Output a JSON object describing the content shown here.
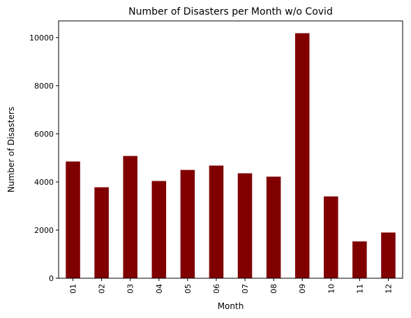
{
  "chart_data": {
    "type": "bar",
    "title": "Number of Disasters per Month w/o Covid",
    "xlabel": "Month",
    "ylabel": "Number of Disasters",
    "categories": [
      "01",
      "02",
      "03",
      "04",
      "05",
      "06",
      "07",
      "08",
      "09",
      "10",
      "11",
      "12"
    ],
    "values": [
      4850,
      3780,
      5080,
      4040,
      4500,
      4680,
      4360,
      4220,
      10180,
      3400,
      1530,
      1900
    ],
    "ylim": [
      0,
      10690
    ],
    "yticks": [
      0,
      2000,
      4000,
      6000,
      8000,
      10000
    ],
    "bar_color": "#800000",
    "grid": false,
    "legend": "none"
  }
}
